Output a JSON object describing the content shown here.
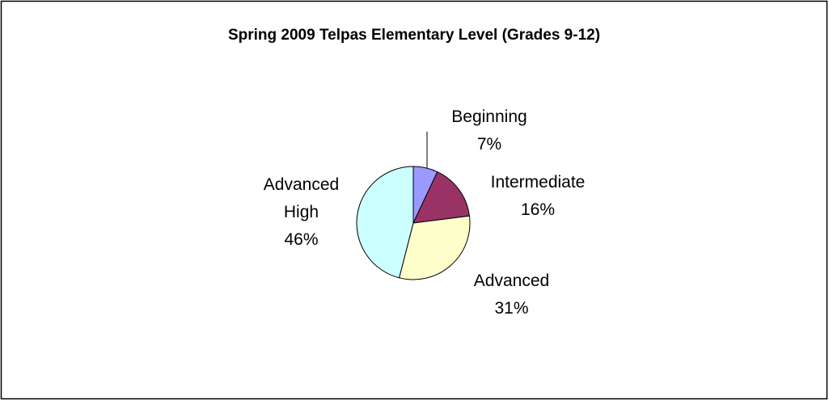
{
  "chart_data": {
    "type": "pie",
    "title": "Spring 2009 Telpas Elementary Level (Grades 9-12)",
    "categories": [
      "Beginning",
      "Intermediate",
      "Advanced",
      "Advanced High"
    ],
    "values": [
      7,
      16,
      31,
      46
    ],
    "value_labels": [
      "7%",
      "16%",
      "31%",
      "46%"
    ],
    "colors": [
      "#9999ff",
      "#993366",
      "#ffffcc",
      "#ccffff"
    ]
  }
}
